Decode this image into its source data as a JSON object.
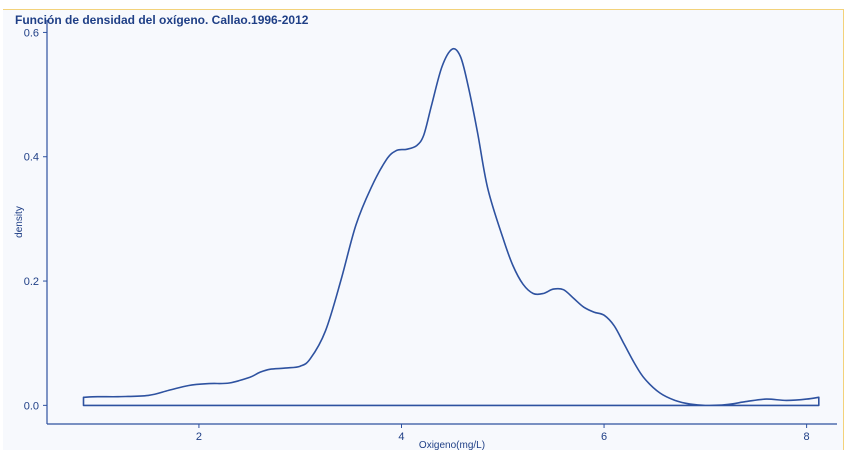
{
  "chart_data": {
    "type": "area",
    "title": "Función de densidad del oxígeno. Callao.1996-2012",
    "xlabel": "Oxigeno(mg/L)",
    "ylabel": "density",
    "xlim": [
      0.5,
      8.3
    ],
    "ylim": [
      -0.03,
      0.62
    ],
    "x_ticks": [
      2,
      4,
      6,
      8
    ],
    "y_ticks": [
      0.0,
      0.2,
      0.4,
      0.6
    ],
    "x_tick_labels": [
      "2",
      "4",
      "6",
      "8"
    ],
    "y_tick_labels": [
      "0.0",
      "0.2",
      "0.4",
      "0.6"
    ],
    "grid": false,
    "series": [
      {
        "color": "#2e52a0",
        "x": [
          0.86,
          1.0,
          1.2,
          1.5,
          1.7,
          1.9,
          2.1,
          2.3,
          2.5,
          2.6,
          2.7,
          2.85,
          3.0,
          3.1,
          3.25,
          3.4,
          3.55,
          3.7,
          3.85,
          3.95,
          4.05,
          4.15,
          4.22,
          4.3,
          4.4,
          4.5,
          4.58,
          4.65,
          4.75,
          4.85,
          5.0,
          5.1,
          5.2,
          5.3,
          5.4,
          5.5,
          5.6,
          5.7,
          5.8,
          5.9,
          6.0,
          6.1,
          6.2,
          6.3,
          6.4,
          6.55,
          6.7,
          6.85,
          7.0,
          7.2,
          7.4,
          7.6,
          7.8,
          8.0,
          8.12
        ],
        "y": [
          0.013,
          0.014,
          0.014,
          0.016,
          0.024,
          0.032,
          0.035,
          0.036,
          0.045,
          0.053,
          0.058,
          0.06,
          0.063,
          0.075,
          0.12,
          0.2,
          0.29,
          0.35,
          0.395,
          0.41,
          0.412,
          0.418,
          0.435,
          0.485,
          0.545,
          0.573,
          0.562,
          0.52,
          0.44,
          0.35,
          0.27,
          0.225,
          0.195,
          0.18,
          0.18,
          0.187,
          0.186,
          0.172,
          0.158,
          0.15,
          0.145,
          0.128,
          0.098,
          0.068,
          0.043,
          0.02,
          0.008,
          0.002,
          0.0,
          0.001,
          0.006,
          0.01,
          0.008,
          0.01,
          0.013
        ]
      }
    ]
  }
}
